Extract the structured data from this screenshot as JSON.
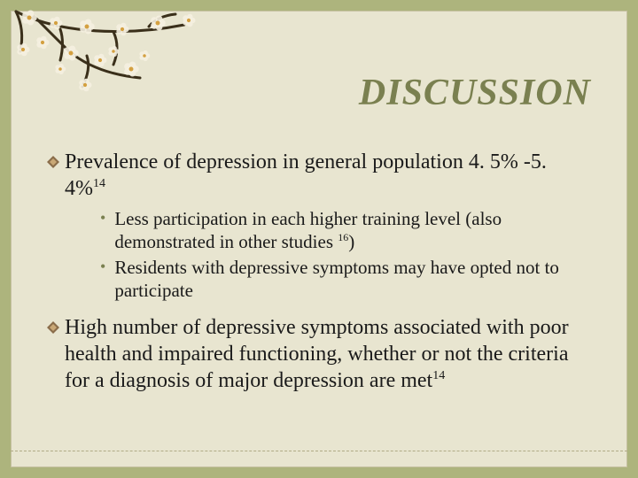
{
  "slide": {
    "title": "DISCUSSION",
    "title_color": "#7a8050",
    "title_fontsize": 42,
    "background_outer": "#adb47d",
    "background_inner": "#e8e5d0",
    "bullets": [
      {
        "text_html": "Prevalence of depression in general population 4. 5% -5. 4%<sup>14</sup>",
        "sub": [
          {
            "text_html": "Less participation in each higher training level (also demonstrated in other studies <sup>16</sup>)"
          },
          {
            "text_html": "Residents with depressive symptoms may have opted not to participate"
          }
        ]
      },
      {
        "text_html": "High number of depressive symptoms associated with poor health and impaired functioning, whether or not the criteria for a diagnosis of major depression are met<sup>14</sup>",
        "sub": []
      }
    ],
    "main_fontsize": 24,
    "sub_fontsize": 21,
    "diamond_colors": {
      "outer": "#8a6d4a",
      "inner": "#c9a876"
    },
    "branch_color": "#3a2f1a",
    "flower_petal": "#f5f0e0",
    "flower_center": "#d4a040"
  }
}
